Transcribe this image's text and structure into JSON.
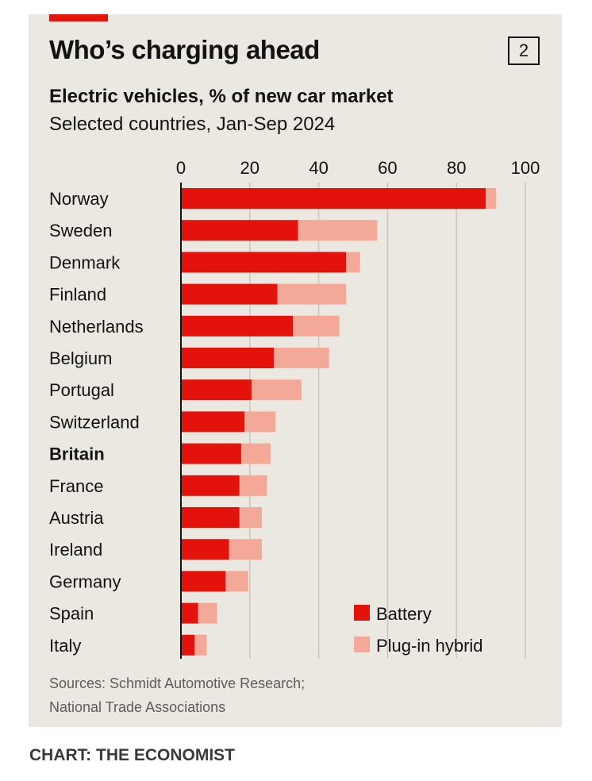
{
  "header": {
    "title": "Who’s charging ahead",
    "chart_number": "2",
    "subtitle": "Electric vehicles, % of new car market",
    "subtitle2": "Selected countries, Jan-Sep 2024"
  },
  "sources": {
    "line1": "Sources: Schmidt Automotive Research;",
    "line2": "National Trade Associations"
  },
  "credit": "CHART: THE ECONOMIST",
  "colors": {
    "battery": "#e3120b",
    "plugin": "#f4a897",
    "panel": "#ebe8e1",
    "grid": "#c8c6bf"
  },
  "chart_data": {
    "type": "bar",
    "orientation": "horizontal",
    "stacked": true,
    "categories": [
      "Norway",
      "Sweden",
      "Denmark",
      "Finland",
      "Netherlands",
      "Belgium",
      "Portugal",
      "Switzerland",
      "Britain",
      "France",
      "Austria",
      "Ireland",
      "Germany",
      "Spain",
      "Italy"
    ],
    "highlight_category": "Britain",
    "series": [
      {
        "name": "Battery",
        "values": [
          88.5,
          34,
          48,
          28,
          32.5,
          27,
          20.5,
          18.5,
          17.5,
          17,
          17,
          14,
          13,
          5,
          4
        ]
      },
      {
        "name": "Plug-in hybrid",
        "values": [
          3,
          23,
          4,
          20,
          13.5,
          16,
          14.5,
          9,
          8.5,
          8,
          6.5,
          9.5,
          6.5,
          5.5,
          3.5
        ]
      }
    ],
    "xlim": [
      0,
      100
    ],
    "xticks": [
      0,
      20,
      40,
      60,
      80,
      100
    ],
    "axis_position": "top",
    "grid": true,
    "legend_placement": "bottom-right"
  }
}
